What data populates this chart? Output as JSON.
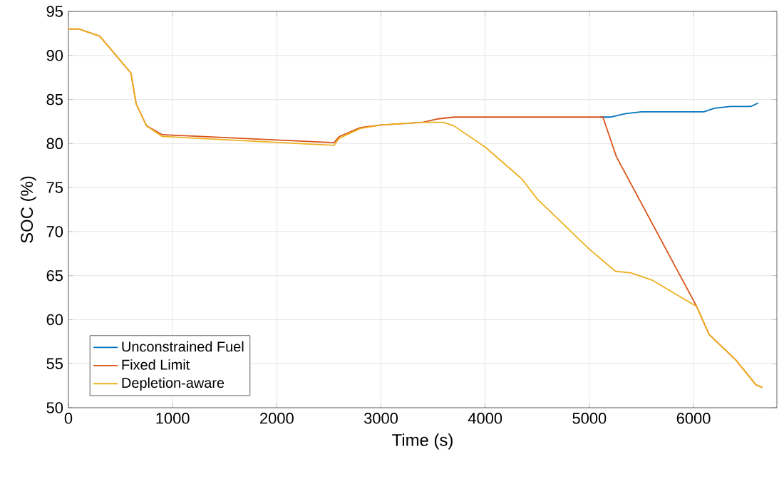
{
  "chart_data": {
    "type": "line",
    "xlabel": "Time (s)",
    "ylabel": "SOC (%)",
    "xlim": [
      0,
      6800
    ],
    "ylim": [
      50,
      95
    ],
    "xticks": [
      0,
      1000,
      2000,
      3000,
      4000,
      5000,
      6000
    ],
    "yticks": [
      50,
      55,
      60,
      65,
      70,
      75,
      80,
      85,
      90,
      95
    ],
    "grid": true,
    "legend": "bottom left",
    "series": [
      {
        "name": "Unconstrained Fuel",
        "color": "#0072bd",
        "x": [
          5100,
          5200,
          5350,
          5500,
          6100,
          6200,
          6350,
          6550,
          6620
        ],
        "values": [
          83,
          83,
          83.4,
          83.6,
          83.6,
          84,
          84.2,
          84.2,
          84.6
        ]
      },
      {
        "name": "Fixed Limit",
        "color": "#d95319",
        "x": [
          0,
          100,
          300,
          600,
          650,
          750,
          900,
          2550,
          2600,
          2800,
          3000,
          3400,
          3550,
          3700,
          5130,
          5260,
          6030,
          6150,
          6400,
          6600,
          6660
        ],
        "values": [
          93,
          93,
          92.2,
          88,
          84.5,
          82,
          81,
          80.1,
          80.8,
          81.8,
          82.1,
          82.4,
          82.8,
          83,
          83,
          78.5,
          61.5,
          58.3,
          55.5,
          52.6,
          52.3
        ]
      },
      {
        "name": "Depletion-aware",
        "color": "#edb120",
        "x": [
          0,
          100,
          300,
          600,
          650,
          750,
          900,
          2550,
          2600,
          2800,
          3000,
          3400,
          3600,
          3700,
          4000,
          4350,
          4500,
          5000,
          5250,
          5400,
          5600,
          6030,
          6150,
          6400,
          6600,
          6660
        ],
        "values": [
          93,
          93,
          92.2,
          88,
          84.5,
          82,
          80.8,
          79.8,
          80.6,
          81.7,
          82.1,
          82.4,
          82.4,
          82,
          79.6,
          76,
          73.7,
          68,
          65.5,
          65.3,
          64.5,
          61.5,
          58.3,
          55.5,
          52.6,
          52.3
        ]
      }
    ]
  }
}
